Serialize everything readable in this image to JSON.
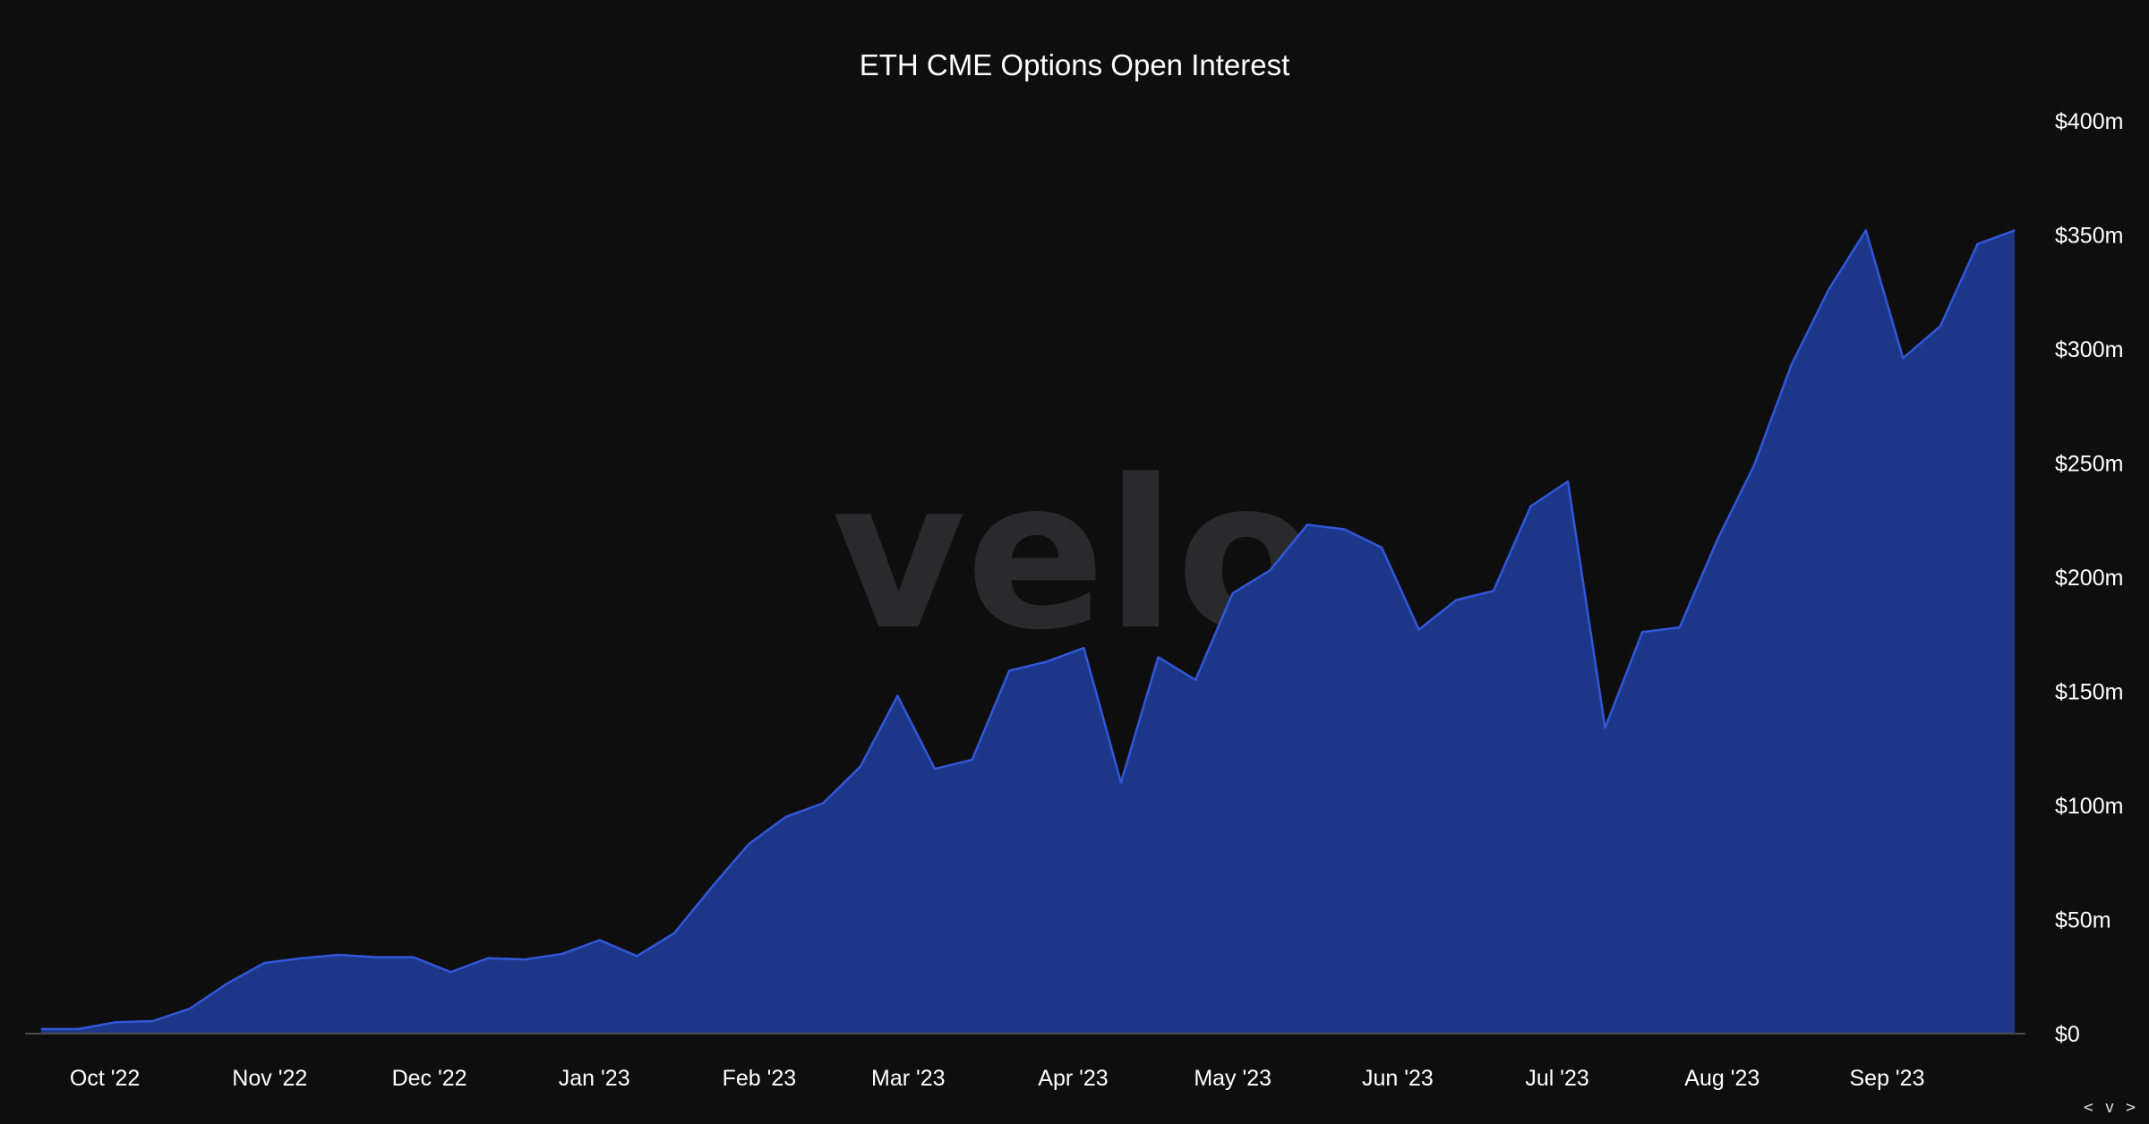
{
  "nav": {
    "label": "< v >"
  },
  "watermark": {
    "text": "velo"
  },
  "colors": {
    "background": "#0e0e0f",
    "area_fill": "#1c3788",
    "line": "#3257d9",
    "axis": "#4a4a4e",
    "watermark": "#2a2a2d",
    "text": "#ffffff"
  },
  "chart_data": {
    "type": "area",
    "title": "ETH CME Options Open Interest",
    "xlabel": "",
    "ylabel": "",
    "ylim": [
      0,
      400
    ],
    "yticks": [
      0,
      50,
      100,
      150,
      200,
      250,
      300,
      350,
      400
    ],
    "ytick_labels": [
      "$0",
      "$50m",
      "$100m",
      "$150m",
      "$200m",
      "$250m",
      "$300m",
      "$350m",
      "$400m"
    ],
    "y_axis_position": "right",
    "grid": false,
    "legend": "none",
    "xlim": [
      "2022-09-16",
      "2023-09-27"
    ],
    "xticks": [
      {
        "date": "2022-10-01",
        "label": "Oct '22"
      },
      {
        "date": "2022-11-01",
        "label": "Nov '22"
      },
      {
        "date": "2022-12-01",
        "label": "Dec '22"
      },
      {
        "date": "2023-01-01",
        "label": "Jan '23"
      },
      {
        "date": "2023-02-01",
        "label": "Feb '23"
      },
      {
        "date": "2023-03-01",
        "label": "Mar '23"
      },
      {
        "date": "2023-04-01",
        "label": "Apr '23"
      },
      {
        "date": "2023-05-01",
        "label": "May '23"
      },
      {
        "date": "2023-06-01",
        "label": "Jun '23"
      },
      {
        "date": "2023-07-01",
        "label": "Jul '23"
      },
      {
        "date": "2023-08-01",
        "label": "Aug '23"
      },
      {
        "date": "2023-09-01",
        "label": "Sep '23"
      }
    ],
    "series": [
      {
        "x": [
          "2022-09-19",
          "2022-09-26",
          "2022-10-03",
          "2022-10-10",
          "2022-10-17",
          "2022-10-24",
          "2022-10-31",
          "2022-11-07",
          "2022-11-14",
          "2022-11-21",
          "2022-11-28",
          "2022-12-05",
          "2022-12-12",
          "2022-12-19",
          "2022-12-26",
          "2023-01-02",
          "2023-01-09",
          "2023-01-16",
          "2023-01-23",
          "2023-01-30",
          "2023-02-06",
          "2023-02-13",
          "2023-02-20",
          "2023-02-27",
          "2023-03-06",
          "2023-03-13",
          "2023-03-20",
          "2023-03-27",
          "2023-04-03",
          "2023-04-10",
          "2023-04-17",
          "2023-04-24",
          "2023-05-01",
          "2023-05-08",
          "2023-05-15",
          "2023-05-22",
          "2023-05-29",
          "2023-06-05",
          "2023-06-12",
          "2023-06-19",
          "2023-06-26",
          "2023-07-03",
          "2023-07-10",
          "2023-07-17",
          "2023-07-24",
          "2023-07-31",
          "2023-08-07",
          "2023-08-14",
          "2023-08-21",
          "2023-08-28",
          "2023-09-04",
          "2023-09-11",
          "2023-09-18",
          "2023-09-25"
        ],
        "values": [
          2,
          2,
          5,
          5.5,
          11,
          22,
          31,
          33,
          34.5,
          33.5,
          33.5,
          27,
          33,
          32.5,
          35,
          41,
          34,
          44,
          64,
          83,
          95,
          101,
          117,
          148,
          116,
          120,
          159,
          163,
          169,
          110,
          165,
          155,
          193,
          203,
          223,
          221,
          213,
          177,
          190,
          194,
          231,
          242,
          134,
          176,
          178,
          216,
          249,
          293,
          326,
          352,
          296,
          310,
          346,
          352
        ]
      }
    ]
  }
}
